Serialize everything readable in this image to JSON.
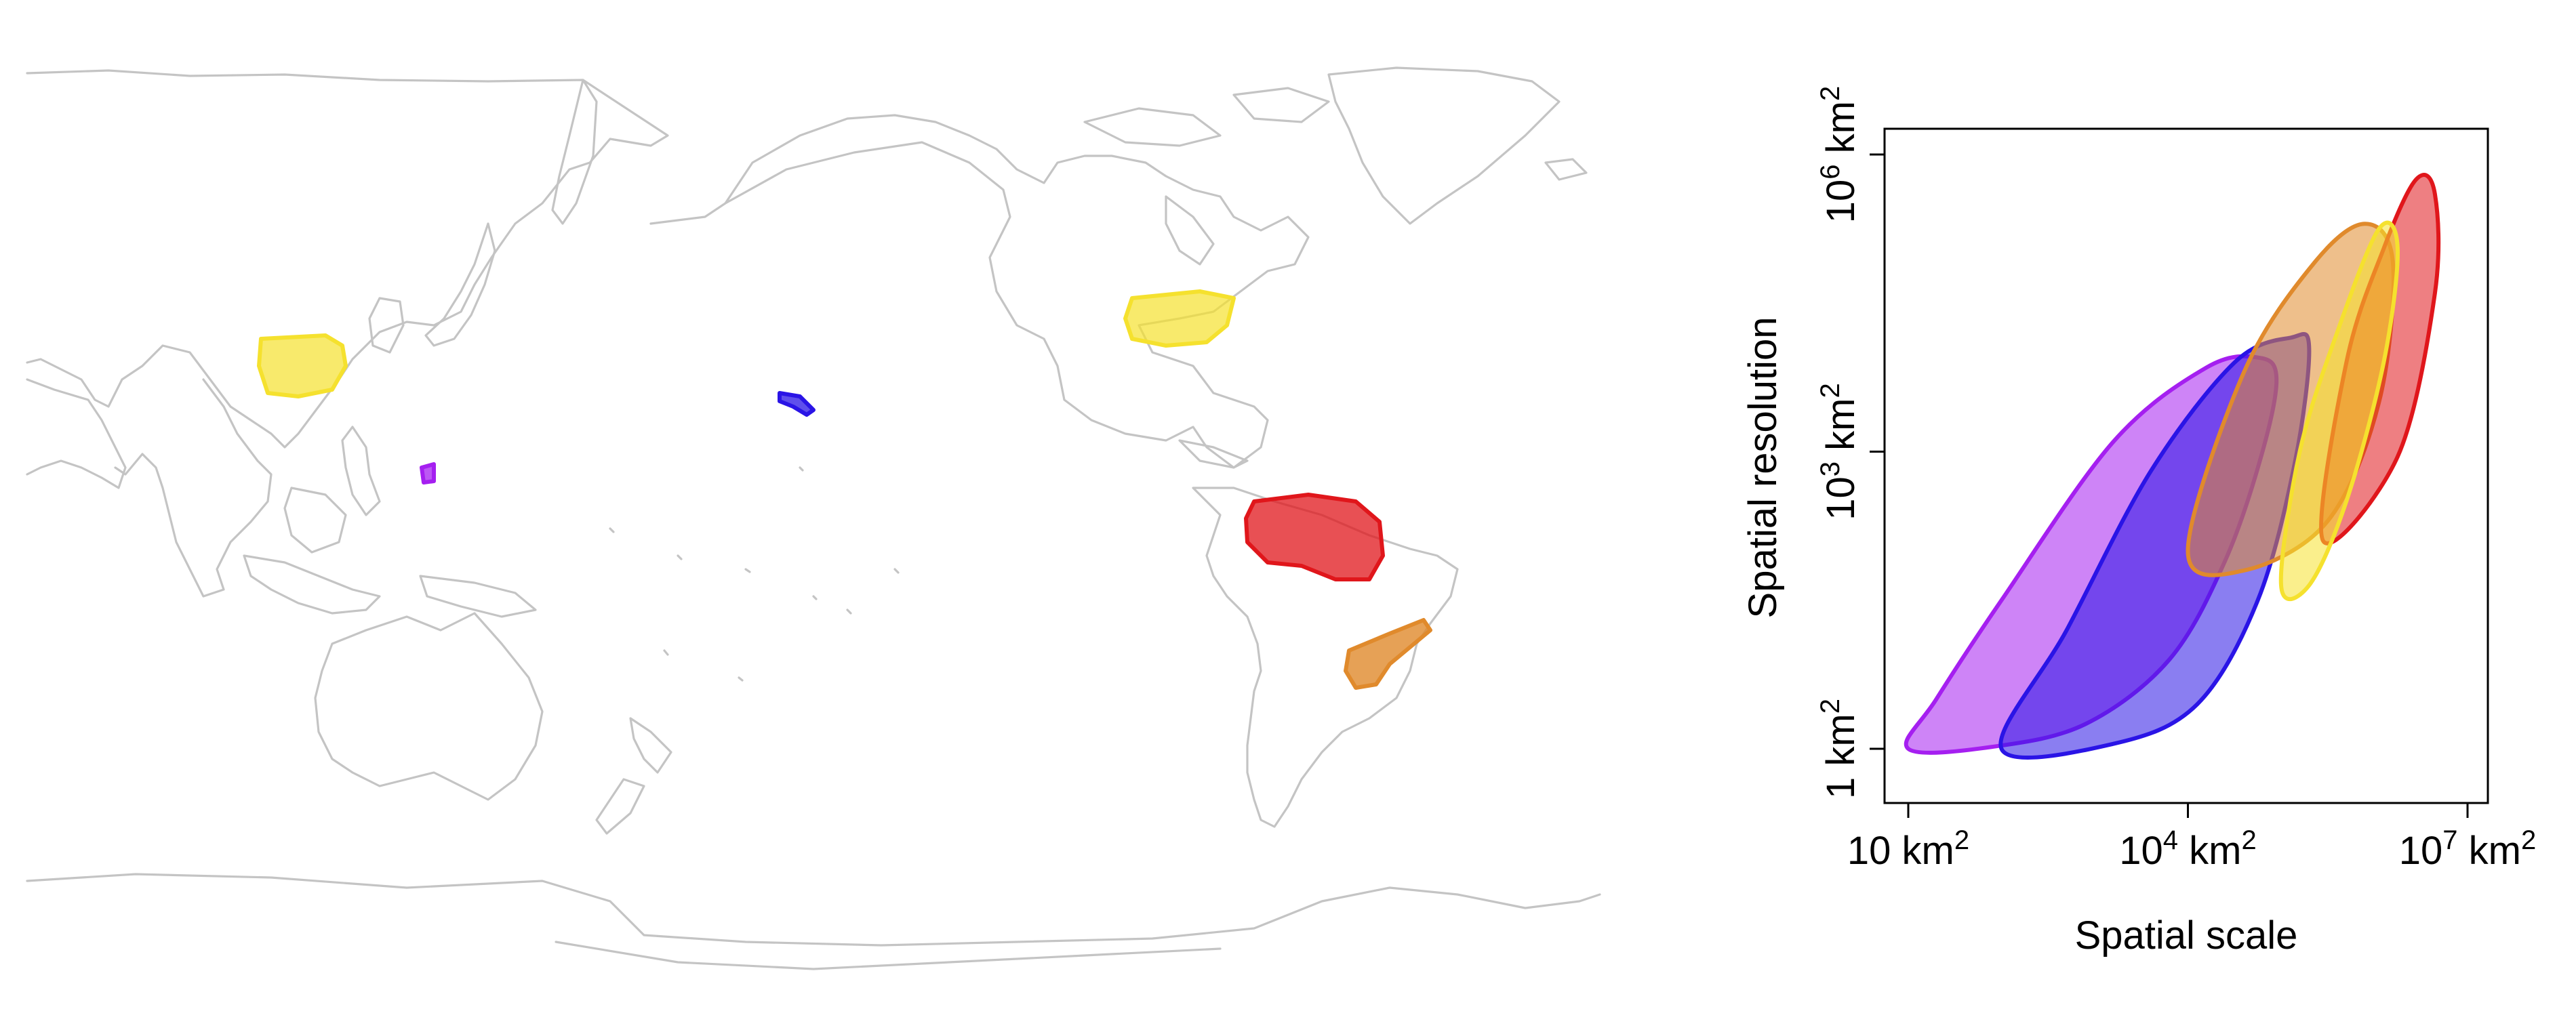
{
  "colors": {
    "red": "#e0161b",
    "orange": "#e08a2c",
    "yellow": "#f5e12e",
    "blue": "#2a14e6",
    "purple": "#a51ff0",
    "coast": "#c4c4c4"
  },
  "map_regions": [
    {
      "name": "china",
      "color_key": "yellow"
    },
    {
      "name": "eastern-us",
      "color_key": "yellow"
    },
    {
      "name": "hawaii",
      "color_key": "blue"
    },
    {
      "name": "philippine-sea",
      "color_key": "purple"
    },
    {
      "name": "amazon",
      "color_key": "red"
    },
    {
      "name": "se-brazil",
      "color_key": "orange"
    }
  ],
  "chart_data": {
    "type": "area",
    "xlabel": "Spatial scale",
    "ylabel": "Spatial resolution",
    "x_scale": "log",
    "y_scale": "log",
    "xlim": [
      1,
      7
    ],
    "ylim": [
      -0.1,
      6.2
    ],
    "x_ticks": [
      {
        "value": 1,
        "base": "10",
        "exp": "",
        "unit": "km",
        "sup": "2"
      },
      {
        "value": 4,
        "base": "10",
        "exp": "4",
        "unit": "km",
        "sup": "2"
      },
      {
        "value": 7,
        "base": "10",
        "exp": "7",
        "unit": "km",
        "sup": "2"
      }
    ],
    "y_ticks": [
      {
        "value": 0,
        "base": "1",
        "exp": "",
        "unit": "km",
        "sup": "2"
      },
      {
        "value": 3,
        "base": "10",
        "exp": "3",
        "unit": "km",
        "sup": "2"
      },
      {
        "value": 6,
        "base": "10",
        "exp": "6",
        "unit": "km",
        "sup": "2"
      }
    ],
    "series": [
      {
        "color_key": "purple",
        "points": [
          [
            1.0,
            0.0
          ],
          [
            1.9,
            0.02
          ],
          [
            2.9,
            0.25
          ],
          [
            3.8,
            0.9
          ],
          [
            4.4,
            1.9
          ],
          [
            4.8,
            3.0
          ],
          [
            4.95,
            3.75
          ],
          [
            4.75,
            3.95
          ],
          [
            4.2,
            3.85
          ],
          [
            3.2,
            3.1
          ],
          [
            2.0,
            1.5
          ],
          [
            1.3,
            0.5
          ]
        ]
      },
      {
        "color_key": "blue",
        "points": [
          [
            2.0,
            0.0
          ],
          [
            3.2,
            0.05
          ],
          [
            4.1,
            0.45
          ],
          [
            4.75,
            1.5
          ],
          [
            5.15,
            2.9
          ],
          [
            5.3,
            4.05
          ],
          [
            5.1,
            4.15
          ],
          [
            4.5,
            3.9
          ],
          [
            3.6,
            2.8
          ],
          [
            2.7,
            1.2
          ]
        ]
      },
      {
        "color_key": "orange",
        "points": [
          [
            4.0,
            2.0
          ],
          [
            4.6,
            1.8
          ],
          [
            5.5,
            2.3
          ],
          [
            6.05,
            3.5
          ],
          [
            6.2,
            4.9
          ],
          [
            5.9,
            5.3
          ],
          [
            5.35,
            4.9
          ],
          [
            4.6,
            3.8
          ]
        ]
      },
      {
        "color_key": "red",
        "points": [
          [
            5.45,
            2.1
          ],
          [
            6.25,
            2.95
          ],
          [
            6.65,
            4.6
          ],
          [
            6.65,
            5.6
          ],
          [
            6.45,
            5.75
          ],
          [
            6.1,
            5.05
          ],
          [
            5.7,
            3.9
          ]
        ]
      },
      {
        "color_key": "yellow",
        "points": [
          [
            5.0,
            1.65
          ],
          [
            5.3,
            1.65
          ],
          [
            5.7,
            2.5
          ],
          [
            6.1,
            3.9
          ],
          [
            6.25,
            5.05
          ],
          [
            6.05,
            5.25
          ],
          [
            5.6,
            4.2
          ],
          [
            5.2,
            3.0
          ]
        ]
      }
    ]
  }
}
